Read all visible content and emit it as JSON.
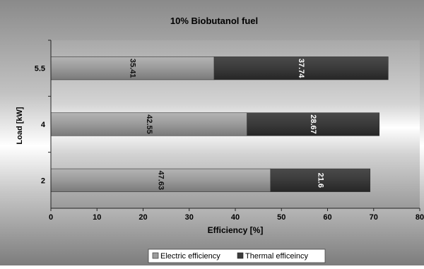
{
  "chart_data": {
    "type": "bar",
    "orientation": "horizontal",
    "stacked": true,
    "title": "10% Biobutanol fuel",
    "xlabel": "Efficiency [%]",
    "ylabel": "Load [kW]",
    "categories": [
      "2",
      "4",
      "5.5"
    ],
    "series": [
      {
        "name": "Electric efficiency",
        "values": [
          47.63,
          42.55,
          35.41
        ],
        "color": "#9c9c9c"
      },
      {
        "name": "Thermal efficeincy",
        "values": [
          21.6,
          28.67,
          37.74
        ],
        "color": "#3c3c3c"
      }
    ],
    "xlim": [
      0,
      80
    ],
    "xticks": [
      "0",
      "10",
      "20",
      "30",
      "40",
      "50",
      "60",
      "70",
      "80"
    ],
    "grid": false,
    "legend_position": "bottom",
    "data_labels": true
  }
}
